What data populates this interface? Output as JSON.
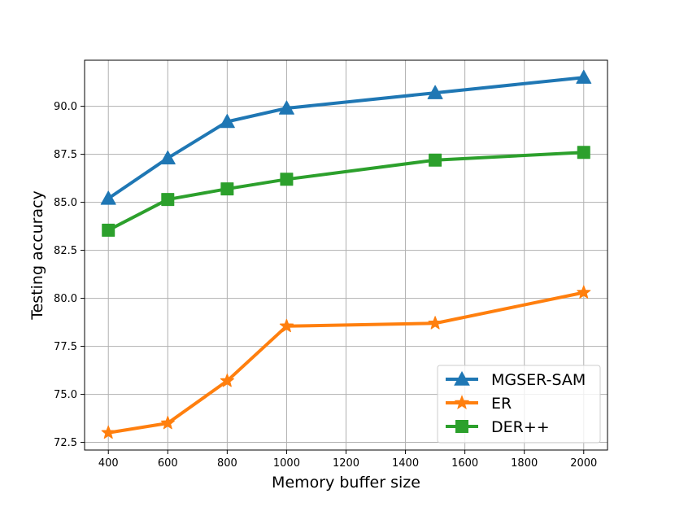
{
  "chart_data": {
    "type": "line",
    "title": "",
    "xlabel": "Memory buffer size",
    "ylabel": "Testing accuracy",
    "xlim": [
      320,
      2080
    ],
    "ylim": [
      72.1,
      92.4
    ],
    "xticks": [
      400,
      600,
      800,
      1000,
      1200,
      1400,
      1600,
      1800,
      2000
    ],
    "xtick_labels": [
      "400",
      "600",
      "800",
      "1000",
      "1200",
      "1400",
      "1600",
      "1800",
      "2000"
    ],
    "yticks": [
      72.5,
      75.0,
      77.5,
      80.0,
      82.5,
      85.0,
      87.5,
      90.0
    ],
    "ytick_labels": [
      "72.5",
      "75.0",
      "77.5",
      "80.0",
      "82.5",
      "85.0",
      "87.5",
      "90.0"
    ],
    "grid": true,
    "legend_position": "bottom-right",
    "x": [
      400,
      600,
      800,
      1000,
      1500,
      2000
    ],
    "series": [
      {
        "name": "MGSER-SAM",
        "color": "#1f77b4",
        "marker": "triangle",
        "values": [
          85.2,
          87.3,
          89.2,
          89.9,
          90.7,
          91.5
        ]
      },
      {
        "name": "ER",
        "color": "#ff7f0e",
        "marker": "star",
        "values": [
          73.0,
          73.5,
          75.7,
          78.55,
          78.7,
          80.3
        ]
      },
      {
        "name": "DER++",
        "color": "#2ca02c",
        "marker": "square",
        "values": [
          83.55,
          85.15,
          85.7,
          86.2,
          87.2,
          87.6
        ]
      }
    ]
  }
}
